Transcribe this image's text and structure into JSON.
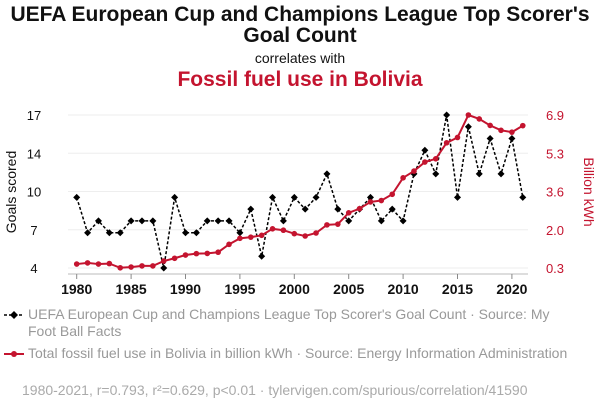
{
  "chart_data": {
    "type": "line",
    "title": "UEFA European Cup and Champions League Top Scorer's Goal Count",
    "correlates_text": "correlates with",
    "subtitle": "Fossil fuel use in Bolivia",
    "x": [
      1980,
      1981,
      1982,
      1983,
      1984,
      1985,
      1986,
      1987,
      1988,
      1989,
      1990,
      1991,
      1992,
      1993,
      1994,
      1995,
      1996,
      1997,
      1998,
      1999,
      2000,
      2001,
      2002,
      2003,
      2004,
      2005,
      2006,
      2007,
      2008,
      2009,
      2010,
      2011,
      2012,
      2013,
      2014,
      2015,
      2016,
      2017,
      2018,
      2019,
      2020,
      2021
    ],
    "series": [
      {
        "name": "UEFA European Cup and Champions League Top Scorer's Goal Count · Source: My Foot Ball Facts",
        "axis": "left",
        "color": "#000000",
        "style": "dashed",
        "values": [
          10,
          7,
          8,
          7,
          7,
          8,
          8,
          8,
          4,
          10,
          7,
          7,
          8,
          8,
          8,
          7,
          9,
          5,
          10,
          8,
          10,
          9,
          10,
          12,
          9,
          8,
          9,
          10,
          8,
          9,
          8,
          12,
          14,
          12,
          17,
          10,
          16,
          12,
          15,
          12,
          15,
          10
        ]
      },
      {
        "name": "Total fossil fuel use in Bolivia in billion kWh · Source: Energy Information Administration",
        "axis": "right",
        "color": "#c4142f",
        "style": "solid",
        "values": [
          0.47,
          0.52,
          0.47,
          0.49,
          0.31,
          0.34,
          0.39,
          0.39,
          0.6,
          0.72,
          0.86,
          0.92,
          0.93,
          0.98,
          1.32,
          1.58,
          1.63,
          1.71,
          1.99,
          1.93,
          1.78,
          1.68,
          1.81,
          2.16,
          2.19,
          2.68,
          2.86,
          3.15,
          3.21,
          3.48,
          4.19,
          4.48,
          4.87,
          5.01,
          5.7,
          5.93,
          6.9,
          6.73,
          6.45,
          6.24,
          6.16,
          6.44
        ]
      }
    ],
    "ylabel": "Goals scored",
    "y2label": "Billion kWh",
    "ylim": [
      4,
      17
    ],
    "y2lim": [
      0.3,
      6.9
    ],
    "yticks": [
      "4",
      "7",
      "10",
      "14",
      "17"
    ],
    "y2ticks": [
      "0.3",
      "2.0",
      "3.6",
      "5.3",
      "6.9"
    ],
    "xticks": [
      "1980",
      "1985",
      "1990",
      "1995",
      "2000",
      "2005",
      "2010",
      "2015",
      "2020"
    ],
    "grid": true
  },
  "legend": {
    "black": "UEFA European Cup and Champions League Top Scorer's Goal Count · Source: My Foot Ball Facts",
    "red": "Total fossil fuel use in Bolivia in billion kWh · Source: Energy Information Administration"
  },
  "footer": "1980-2021, r=0.793, r²=0.629, p<0.01 · tylervigen.com/spurious/correlation/41590"
}
